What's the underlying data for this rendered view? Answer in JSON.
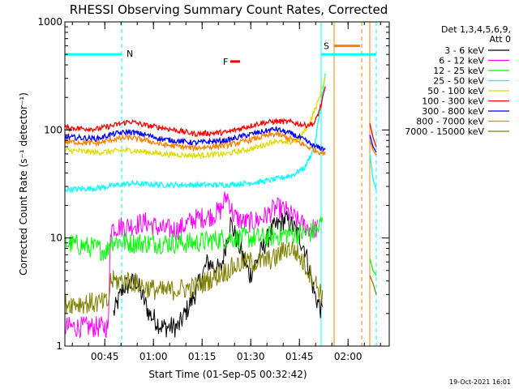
{
  "chart_data": {
    "type": "line",
    "title": "RHESSI Observing Summary Count Rates, Corrected",
    "xlabel": "Start Time (01-Sep-05 00:32:42)",
    "ylabel": "Corrected Count Rate (s⁻¹ detector⁻¹)",
    "yscale": "log",
    "ylim": [
      1,
      1000
    ],
    "xlim": [
      0,
      100
    ],
    "x_unit": "minutes since 00:32:42",
    "y_ticks": [
      {
        "value": 1,
        "label": "1"
      },
      {
        "value": 10,
        "label": "10"
      },
      {
        "value": 100,
        "label": "100"
      },
      {
        "value": 1000,
        "label": "1000"
      }
    ],
    "x_ticks": [
      {
        "value": 12.3,
        "label": "00:45"
      },
      {
        "value": 27.3,
        "label": "01:00"
      },
      {
        "value": 42.3,
        "label": "01:15"
      },
      {
        "value": 57.3,
        "label": "01:30"
      },
      {
        "value": 72.3,
        "label": "01:45"
      },
      {
        "value": 87.3,
        "label": "02:00"
      }
    ],
    "legend": {
      "header_line1": "Det 1,3,4,5,6,9,",
      "header_line2": "Att 0",
      "placement": "right"
    },
    "series": [
      {
        "name": "3 - 6 keV",
        "color": "#000000",
        "x": [
          15,
          18,
          22,
          26,
          30,
          35,
          40,
          44,
          48,
          51,
          54,
          57,
          60,
          64,
          68,
          71,
          74,
          77,
          79.5
        ],
        "values": [
          2.0,
          3.5,
          4.0,
          2.0,
          1.5,
          1.5,
          3.0,
          6.0,
          5.0,
          14.0,
          8.0,
          4.5,
          7.0,
          12.0,
          15.0,
          12.0,
          8.0,
          3.0,
          2.0
        ]
      },
      {
        "name": "6 - 12 keV",
        "color": "#ff00ff",
        "x": [
          0,
          13.5,
          14,
          20,
          25,
          30,
          35,
          40,
          45,
          48,
          50,
          52,
          55,
          58,
          62,
          65,
          68,
          70,
          72,
          75,
          78
        ],
        "values": [
          1.5,
          1.5,
          12.5,
          13.0,
          14.0,
          12.0,
          12.0,
          15.0,
          16.0,
          18.0,
          25.0,
          16.0,
          14.0,
          14.0,
          16.0,
          19.0,
          18.0,
          16.0,
          14.0,
          12.5,
          12.0
        ]
      },
      {
        "name": "12 - 25 keV",
        "color": "#00ff00",
        "x": [
          0,
          5,
          10,
          13,
          14,
          20,
          30,
          40,
          50,
          60,
          70,
          75,
          78,
          79.5
        ],
        "values": [
          9.0,
          8.5,
          8.0,
          7.5,
          9.5,
          9.0,
          9.0,
          9.0,
          10.0,
          10.0,
          11.0,
          11.0,
          12.0,
          15.0
        ]
      },
      {
        "name": "25 - 50 keV",
        "color": "#00ffff",
        "x": [
          0,
          10,
          20,
          30,
          40,
          50,
          60,
          65,
          70,
          74,
          77,
          79,
          80.5
        ],
        "values": [
          28,
          29,
          32,
          31,
          31,
          31,
          33,
          35,
          38,
          45,
          70,
          180,
          350
        ]
      },
      {
        "name": "50 - 100 keV",
        "color": "#dddd00",
        "x": [
          0,
          10,
          20,
          30,
          40,
          50,
          60,
          65,
          68,
          72,
          75,
          78,
          80.5
        ],
        "values": [
          65,
          62,
          65,
          60,
          58,
          60,
          70,
          80,
          75,
          80,
          110,
          180,
          330
        ]
      },
      {
        "name": "100 - 300 keV",
        "color": "#ff0000",
        "x": [
          0,
          10,
          15,
          20,
          25,
          30,
          40,
          50,
          55,
          60,
          65,
          70,
          74,
          77,
          79,
          80.5
        ],
        "values": [
          105,
          102,
          110,
          120,
          110,
          105,
          92,
          95,
          105,
          115,
          120,
          118,
          110,
          115,
          170,
          260
        ]
      },
      {
        "name": "300 - 800 keV",
        "color": "#0000ff",
        "x": [
          0,
          10,
          15,
          20,
          25,
          30,
          40,
          50,
          55,
          60,
          65,
          70,
          74,
          77,
          79,
          80.5
        ],
        "values": [
          86,
          83,
          92,
          96,
          90,
          82,
          76,
          80,
          88,
          95,
          102,
          92,
          80,
          70,
          68,
          66
        ]
      },
      {
        "name": "800 - 7000 keV",
        "color": "#ff8000",
        "x": [
          0,
          10,
          15,
          20,
          25,
          30,
          40,
          50,
          55,
          60,
          65,
          70,
          74,
          77,
          79,
          80.5
        ],
        "values": [
          78,
          75,
          82,
          85,
          80,
          73,
          68,
          72,
          78,
          85,
          92,
          82,
          72,
          65,
          62,
          60
        ]
      },
      {
        "name": "7000 - 15000 keV",
        "color": "#808000",
        "x": [
          0,
          10,
          13.5,
          14,
          20,
          25,
          30,
          40,
          50,
          55,
          60,
          65,
          68,
          70,
          72,
          75,
          78,
          79.5
        ],
        "values": [
          2.5,
          2.5,
          2.5,
          4.0,
          4.0,
          3.5,
          3.2,
          3.5,
          5.0,
          6.0,
          6.0,
          6.5,
          8.0,
          8.0,
          7.0,
          5.0,
          3.5,
          3.0
        ]
      }
    ],
    "annotations": {
      "N_label": "N",
      "S_label": "S",
      "F_label": "F",
      "night_bar": {
        "x_start": 0,
        "x_end": 17.5,
        "y": 500,
        "color": "#00ffff"
      },
      "saa_bar_cyan": {
        "x_start": 79,
        "x_end": 96,
        "y": 500,
        "color": "#00ffff"
      },
      "saa_bar_orange": {
        "x_start": 83,
        "x_end": 91,
        "y": 600,
        "color": "#ff8000"
      },
      "flare_marker": {
        "x_start": 51,
        "x_end": 54,
        "y": 430,
        "color": "#ff0000"
      },
      "vertical_lines": [
        {
          "x": 17.5,
          "color": "#00ffff",
          "style": "dashed"
        },
        {
          "x": 79,
          "color": "#00ffff",
          "style": "solid"
        },
        {
          "x": 83,
          "color": "#ff8000",
          "style": "solid"
        },
        {
          "x": 91.5,
          "color": "#ff8000",
          "style": "dashed"
        },
        {
          "x": 94,
          "color": "#ff8000",
          "style": "solid"
        },
        {
          "x": 96,
          "color": "#00ffff",
          "style": "dashed"
        }
      ],
      "post_gap_segments": [
        {
          "color": "#ff0000",
          "x": [
            94,
            95,
            96
          ],
          "values": [
            115,
            85,
            70
          ]
        },
        {
          "color": "#0000ff",
          "x": [
            94,
            95,
            96
          ],
          "values": [
            90,
            70,
            62
          ]
        },
        {
          "color": "#ff8000",
          "x": [
            94,
            95,
            96
          ],
          "values": [
            80,
            65,
            58
          ]
        },
        {
          "color": "#00ffff",
          "x": [
            94,
            95,
            96
          ],
          "values": [
            60,
            35,
            28
          ]
        },
        {
          "color": "#00ff00",
          "x": [
            94,
            95,
            96
          ],
          "values": [
            6.5,
            5,
            4.5
          ]
        },
        {
          "color": "#808000",
          "x": [
            94,
            95,
            96
          ],
          "values": [
            4.5,
            3.8,
            3.0
          ]
        }
      ]
    },
    "footer": "19-Oct-2021 16:01"
  }
}
